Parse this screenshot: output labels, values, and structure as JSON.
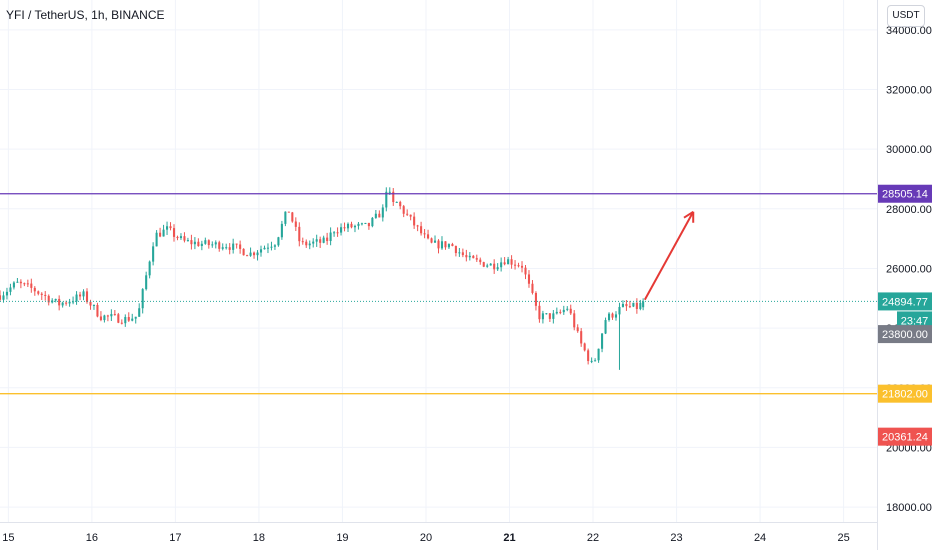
{
  "header": {
    "title": "YFI / TetherUS, 1h, BINANCE",
    "currency_button": "USDT"
  },
  "colors": {
    "up": "#26a69a",
    "down": "#ef5350",
    "resistance": "#673ab7",
    "support": "#fbc02d",
    "arrow": "#e53935",
    "grid": "#f0f3fa",
    "last_price": "#26a69a",
    "countdown": "#787b86",
    "low_badge": "#ef5350"
  },
  "chart_data": {
    "type": "candlestick",
    "symbol": "YFI / TetherUS",
    "interval": "1h",
    "exchange": "BINANCE",
    "x_ticks": [
      "15",
      "16",
      "17",
      "18",
      "19",
      "20",
      "21",
      "22",
      "23",
      "24",
      "25"
    ],
    "bold_x_tick": "21",
    "xlim": [
      14.9,
      25.4
    ],
    "y_ticks": [
      18000,
      20000,
      22000,
      24000,
      26000,
      28000,
      30000,
      32000,
      34000
    ],
    "y_tick_labels": [
      "18000.00",
      "20000.00",
      "22000.00",
      "24000.00",
      "26000.00",
      "28000.00",
      "30000.00",
      "32000.00",
      "34000.00"
    ],
    "ylim": [
      17500,
      35000
    ],
    "grid": true,
    "price_anchors": [
      [
        14.9,
        25100
      ],
      [
        15.1,
        25500
      ],
      [
        15.3,
        25300
      ],
      [
        15.6,
        24800
      ],
      [
        15.9,
        25100
      ],
      [
        16.1,
        24400
      ],
      [
        16.4,
        24300
      ],
      [
        16.55,
        24400
      ],
      [
        16.75,
        27100
      ],
      [
        16.9,
        27300
      ],
      [
        17.1,
        26900
      ],
      [
        17.4,
        26800
      ],
      [
        17.6,
        26800
      ],
      [
        17.9,
        26500
      ],
      [
        18.05,
        26700
      ],
      [
        18.2,
        26900
      ],
      [
        18.35,
        28000
      ],
      [
        18.5,
        26800
      ],
      [
        18.8,
        26900
      ],
      [
        18.9,
        27300
      ],
      [
        19.1,
        27400
      ],
      [
        19.3,
        27400
      ],
      [
        19.5,
        28000
      ],
      [
        19.65,
        28200
      ],
      [
        19.85,
        27500
      ],
      [
        20.05,
        26800
      ],
      [
        20.3,
        26800
      ],
      [
        20.5,
        26300
      ],
      [
        20.8,
        26100
      ],
      [
        20.95,
        26300
      ],
      [
        21.15,
        26100
      ],
      [
        21.35,
        24400
      ],
      [
        21.55,
        24400
      ],
      [
        21.7,
        24700
      ],
      [
        21.85,
        23500
      ],
      [
        22.0,
        22700
      ],
      [
        22.15,
        24300
      ],
      [
        22.35,
        24700
      ],
      [
        22.55,
        24700
      ],
      [
        22.6,
        24940
      ]
    ],
    "last_candle": {
      "time": 22.6,
      "open": 24700,
      "high": 25000,
      "low": 24600,
      "close": 24894.77
    },
    "extremes": {
      "high": {
        "time": 19.55,
        "value": 28720
      },
      "low": {
        "time": 22.32,
        "value": 22600
      }
    },
    "horizontal_lines": [
      {
        "name": "resistance",
        "value": 28505.14,
        "label": "28505.14"
      },
      {
        "name": "support",
        "value": 21802.0,
        "label": "21802.00"
      }
    ],
    "last_price": {
      "value": 24894.77,
      "label": "24894.77",
      "countdown": "23:47"
    },
    "price_badges": [
      {
        "name": "level",
        "value": 23800.0,
        "label": "23800.00"
      },
      {
        "name": "low",
        "value": 20361.24,
        "label": "20361.24"
      }
    ],
    "projection_arrow": {
      "from": [
        22.62,
        24950
      ],
      "to": [
        23.2,
        27900
      ]
    }
  }
}
